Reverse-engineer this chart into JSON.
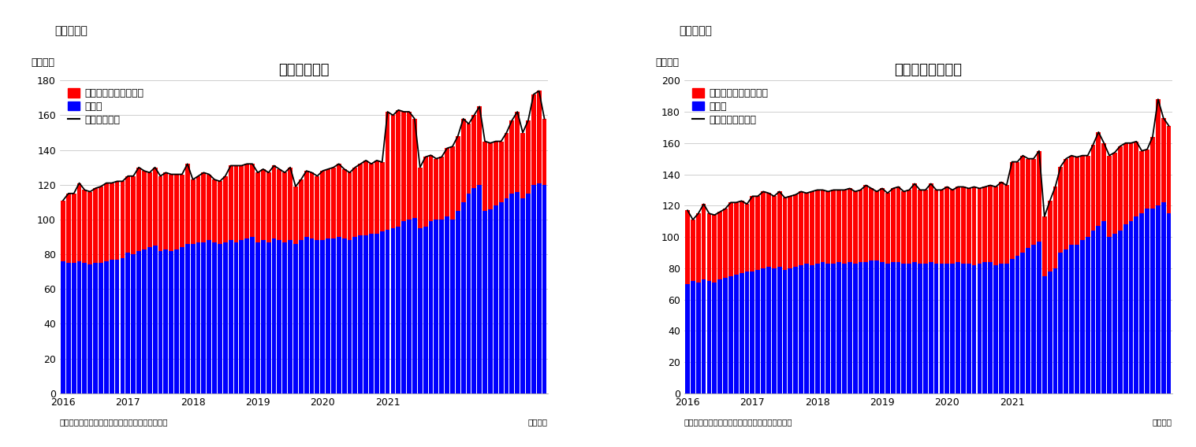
{
  "chart1": {
    "title": "住宅着工件数",
    "super_title": "（図表１）",
    "ylabel": "（万件）",
    "footer_left": "（資料）センサス局よりニッセイ基礎研究所作成",
    "footer_right": "（月次）",
    "ylim": [
      0,
      180
    ],
    "yticks": [
      0,
      20,
      40,
      60,
      80,
      100,
      120,
      140,
      160,
      180
    ],
    "legend_labels": [
      "集合住宅（二戸以上）",
      "戸建て",
      "住宅着工件数"
    ],
    "blue_values": [
      76,
      75,
      75,
      76,
      75,
      74,
      75,
      75,
      76,
      77,
      77,
      78,
      81,
      80,
      82,
      83,
      84,
      85,
      82,
      83,
      82,
      83,
      84,
      86,
      86,
      87,
      87,
      88,
      87,
      86,
      87,
      88,
      87,
      88,
      89,
      90,
      87,
      88,
      87,
      89,
      88,
      87,
      88,
      86,
      88,
      90,
      89,
      88,
      88,
      89,
      89,
      90,
      89,
      88,
      90,
      91,
      91,
      92,
      92,
      93,
      94,
      95,
      96,
      99,
      100,
      101,
      95,
      96,
      99,
      100,
      100,
      102,
      100,
      105,
      110,
      115,
      118,
      120,
      105,
      106,
      108,
      110,
      112,
      115,
      116,
      112,
      115,
      120,
      121,
      120
    ],
    "red_values": [
      35,
      40,
      40,
      45,
      42,
      42,
      43,
      44,
      45,
      44,
      45,
      44,
      44,
      45,
      48,
      45,
      43,
      45,
      43,
      44,
      44,
      43,
      42,
      46,
      37,
      38,
      40,
      38,
      36,
      36,
      38,
      43,
      44,
      43,
      43,
      42,
      40,
      41,
      40,
      42,
      41,
      40,
      42,
      33,
      35,
      38,
      38,
      37,
      40,
      40,
      41,
      42,
      40,
      39,
      40,
      41,
      43,
      40,
      42,
      40,
      68,
      65,
      67,
      63,
      62,
      57,
      35,
      40,
      38,
      35,
      36,
      39,
      42,
      43,
      48,
      40,
      42,
      45,
      40,
      38,
      37,
      35,
      38,
      42,
      46,
      38,
      42,
      52,
      53,
      38
    ],
    "line_values": [
      111,
      115,
      115,
      121,
      117,
      116,
      118,
      119,
      121,
      121,
      122,
      122,
      125,
      125,
      130,
      128,
      127,
      130,
      125,
      127,
      126,
      126,
      126,
      132,
      123,
      125,
      127,
      126,
      123,
      122,
      125,
      131,
      131,
      131,
      132,
      132,
      127,
      129,
      127,
      131,
      129,
      127,
      130,
      119,
      123,
      128,
      127,
      125,
      128,
      129,
      130,
      132,
      129,
      127,
      130,
      132,
      134,
      132,
      134,
      133,
      162,
      160,
      163,
      162,
      162,
      158,
      130,
      136,
      137,
      135,
      136,
      141,
      142,
      148,
      158,
      155,
      160,
      165,
      145,
      144,
      145,
      145,
      150,
      157,
      162,
      150,
      157,
      172,
      174,
      158
    ]
  },
  "chart2": {
    "title": "住宅着工許可件数",
    "super_title": "（図表２）",
    "ylabel": "（万件）",
    "footer_left": "（資料）センサス局よりニッセイ基礎研究所作成",
    "footer_right": "（月次）",
    "ylim": [
      0,
      200
    ],
    "yticks": [
      0,
      20,
      40,
      60,
      80,
      100,
      120,
      140,
      160,
      180,
      200
    ],
    "legend_labels": [
      "集合住宅（二戸以上）",
      "戸建て",
      "住宅建築許可件数"
    ],
    "blue_values": [
      70,
      72,
      71,
      73,
      72,
      71,
      73,
      74,
      75,
      76,
      77,
      78,
      78,
      79,
      80,
      81,
      80,
      81,
      79,
      80,
      81,
      82,
      83,
      82,
      83,
      84,
      83,
      83,
      84,
      83,
      84,
      83,
      84,
      84,
      85,
      85,
      84,
      83,
      84,
      84,
      83,
      83,
      84,
      83,
      83,
      84,
      83,
      83,
      83,
      83,
      84,
      83,
      83,
      82,
      83,
      84,
      84,
      82,
      83,
      83,
      86,
      88,
      90,
      93,
      95,
      97,
      75,
      78,
      80,
      90,
      92,
      95,
      95,
      98,
      100,
      104,
      107,
      110,
      100,
      102,
      104,
      108,
      110,
      113,
      115,
      118,
      118,
      120,
      122,
      115
    ],
    "red_values": [
      47,
      39,
      44,
      48,
      43,
      43,
      43,
      44,
      47,
      46,
      46,
      43,
      48,
      47,
      49,
      47,
      46,
      48,
      46,
      46,
      46,
      47,
      45,
      47,
      47,
      46,
      46,
      47,
      46,
      47,
      47,
      46,
      46,
      49,
      46,
      44,
      47,
      45,
      47,
      48,
      46,
      47,
      50,
      47,
      47,
      50,
      47,
      47,
      49,
      47,
      48,
      49,
      48,
      50,
      48,
      48,
      49,
      50,
      52,
      50,
      62,
      60,
      62,
      57,
      55,
      58,
      38,
      45,
      52,
      55,
      58,
      57,
      56,
      54,
      52,
      55,
      60,
      50,
      52,
      52,
      54,
      52,
      50,
      48,
      40,
      38,
      46,
      68,
      54,
      56
    ],
    "line_values": [
      117,
      111,
      115,
      121,
      115,
      114,
      116,
      118,
      122,
      122,
      123,
      121,
      126,
      126,
      129,
      128,
      126,
      129,
      125,
      126,
      127,
      129,
      128,
      129,
      130,
      130,
      129,
      130,
      130,
      130,
      131,
      129,
      130,
      133,
      131,
      129,
      131,
      128,
      131,
      132,
      129,
      130,
      134,
      130,
      130,
      134,
      130,
      130,
      132,
      130,
      132,
      132,
      131,
      132,
      131,
      132,
      133,
      132,
      135,
      133,
      148,
      148,
      152,
      150,
      150,
      155,
      113,
      123,
      132,
      145,
      150,
      152,
      151,
      152,
      152,
      159,
      167,
      160,
      152,
      154,
      158,
      160,
      160,
      161,
      155,
      156,
      164,
      188,
      176,
      171
    ]
  },
  "bar_color_blue": "#0000ff",
  "bar_color_red": "#ff0000",
  "line_color": "#000000",
  "bg_color": "#ffffff",
  "title_fontsize": 13,
  "label_fontsize": 9,
  "tick_fontsize": 9,
  "legend_fontsize": 9
}
